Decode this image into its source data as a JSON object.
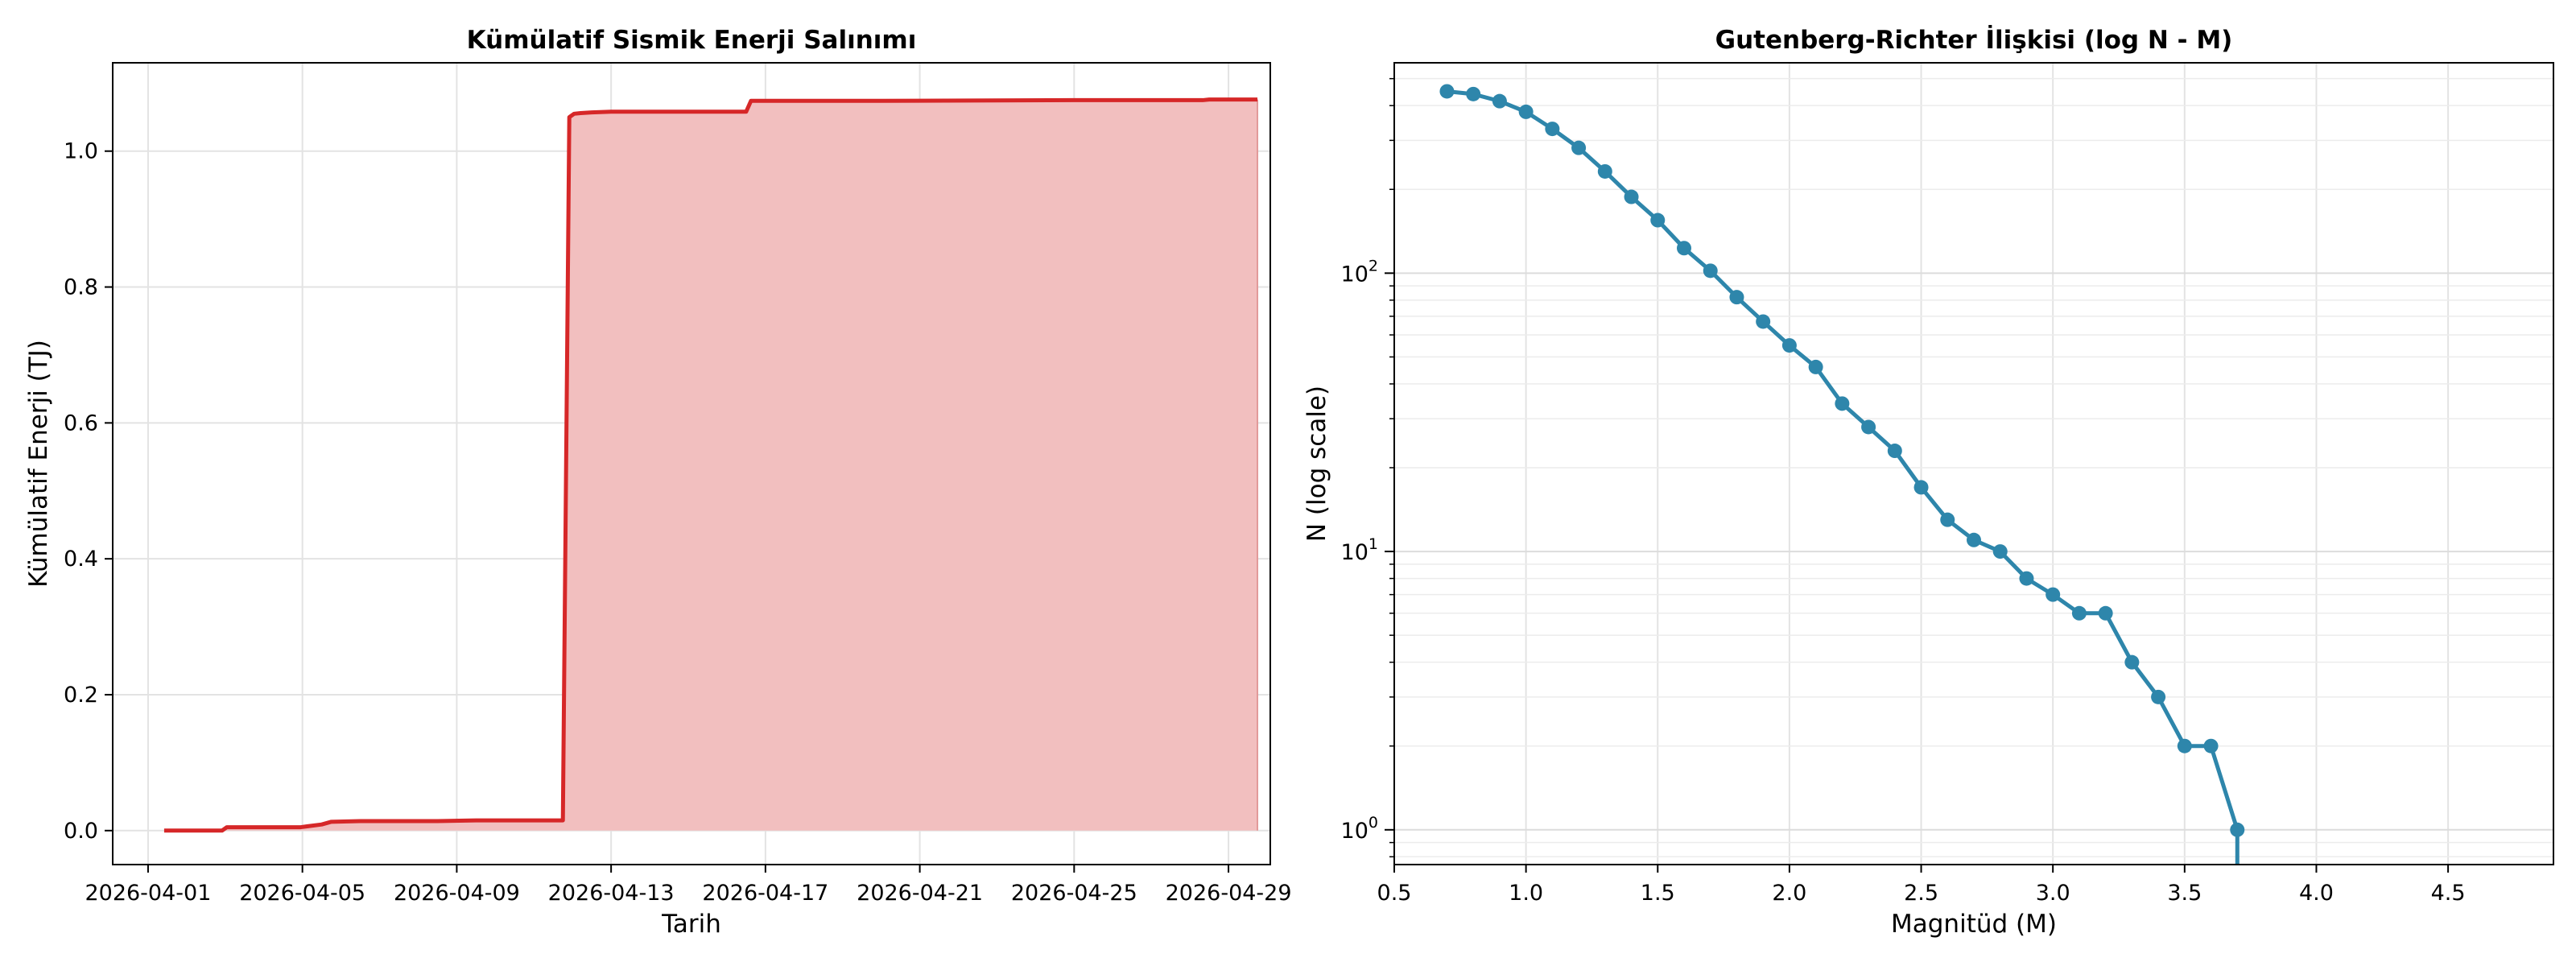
{
  "chart_data": [
    {
      "type": "area",
      "title": "Kümülatif Sismik Enerji Salınımı",
      "xlabel": "Tarih",
      "ylabel": "Kümülatif Enerji (TJ)",
      "x_ticks": [
        "2026-04-01",
        "2026-04-05",
        "2026-04-09",
        "2026-04-13",
        "2026-04-17",
        "2026-04-21",
        "2026-04-25",
        "2026-04-29"
      ],
      "y_ticks": [
        0.0,
        0.2,
        0.4,
        0.6,
        0.8,
        1.0
      ],
      "y_tick_labels": [
        "0.0",
        "0.2",
        "0.4",
        "0.6",
        "0.8",
        "1.0"
      ],
      "xlim": [
        "2025-03-31T02:00",
        "2026-04-30T02:00"
      ],
      "ylim": [
        -0.05,
        1.13
      ],
      "grid": true,
      "line_color": "#d62728",
      "fill_color": "#f2bfbf",
      "series": [
        {
          "x": [
            "2026-04-01T10:00",
            "2026-04-02T22:00",
            "2026-04-03T01:00",
            "2026-04-04T23:00",
            "2026-04-05T02:00",
            "2026-04-05T12:00",
            "2026-04-05T18:00",
            "2026-04-06T12:00",
            "2026-04-07T12:00",
            "2026-04-08T12:00",
            "2026-04-09T12:00",
            "2026-04-10T12:00",
            "2026-04-11T18:00",
            "2026-04-11T22:00",
            "2026-04-12T01:00",
            "2026-04-12T05:00",
            "2026-04-12T12:00",
            "2026-04-13T00:00",
            "2026-04-16T12:00",
            "2026-04-16T15:00",
            "2026-04-20T00:00",
            "2026-04-25T00:00",
            "2026-04-28T08:00",
            "2026-04-28T12:00",
            "2026-04-29T18:00"
          ],
          "y": [
            0.0,
            0.0,
            0.005,
            0.005,
            0.006,
            0.009,
            0.013,
            0.014,
            0.014,
            0.014,
            0.015,
            0.015,
            0.015,
            1.05,
            1.055,
            1.056,
            1.057,
            1.058,
            1.058,
            1.074,
            1.074,
            1.075,
            1.075,
            1.076,
            1.076
          ]
        }
      ]
    },
    {
      "type": "line",
      "title": "Gutenberg-Richter İlişkisi (log N - M)",
      "xlabel": "Magnitüd (M)",
      "ylabel": "N (log scale)",
      "y_scale": "log",
      "x_ticks": [
        0.5,
        1.0,
        1.5,
        2.0,
        2.5,
        3.0,
        3.5,
        4.0,
        4.5
      ],
      "x_tick_labels": [
        "0.5",
        "1.0",
        "1.5",
        "2.0",
        "2.5",
        "3.0",
        "3.5",
        "4.0",
        "4.5"
      ],
      "y_ticks": [
        1,
        10,
        100
      ],
      "y_tick_labels": [
        {
          "base": "10",
          "exp": "0"
        },
        {
          "base": "10",
          "exp": "1"
        },
        {
          "base": "10",
          "exp": "2"
        }
      ],
      "xlim": [
        0.5,
        4.9
      ],
      "ylim": [
        0.75,
        570
      ],
      "grid": true,
      "color": "#2e86ab",
      "series": [
        {
          "x": [
            0.7,
            0.8,
            0.9,
            1.0,
            1.1,
            1.2,
            1.3,
            1.4,
            1.5,
            1.6,
            1.7,
            1.8,
            1.9,
            2.0,
            2.1,
            2.2,
            2.3,
            2.4,
            2.5,
            2.6,
            2.7,
            2.8,
            2.9,
            3.0,
            3.1,
            3.2,
            3.3,
            3.4,
            3.5,
            3.6,
            3.7
          ],
          "y": [
            450,
            440,
            415,
            380,
            330,
            282,
            232,
            188,
            155,
            123,
            102,
            82,
            67,
            55,
            46,
            34,
            28,
            23,
            17,
            13,
            11,
            10,
            8,
            7,
            6,
            6,
            4,
            3,
            2,
            2,
            1
          ]
        }
      ]
    }
  ]
}
